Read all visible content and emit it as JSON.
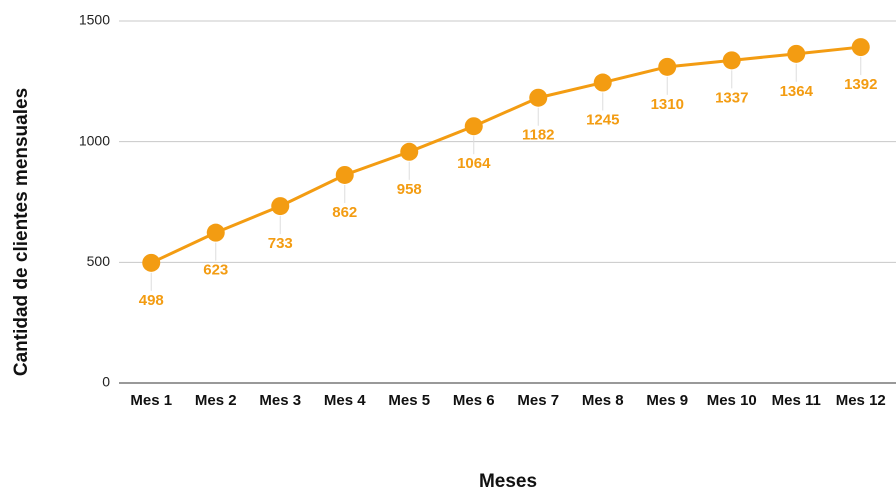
{
  "chart_data": {
    "type": "line",
    "x_label": "Meses",
    "y_label": "Cantidad de clientes mensuales",
    "categories": [
      "Mes 1",
      "Mes 2",
      "Mes 3",
      "Mes 4",
      "Mes 5",
      "Mes 6",
      "Mes 7",
      "Mes 8",
      "Mes 9",
      "Mes 10",
      "Mes 11",
      "Mes 12"
    ],
    "values": [
      498,
      623,
      733,
      862,
      958,
      1064,
      1182,
      1245,
      1310,
      1337,
      1364,
      1392
    ],
    "color": "#f39c12",
    "ylim": [
      0,
      1500
    ],
    "yticks": [
      0,
      500,
      1000,
      1500
    ],
    "grid": true
  }
}
